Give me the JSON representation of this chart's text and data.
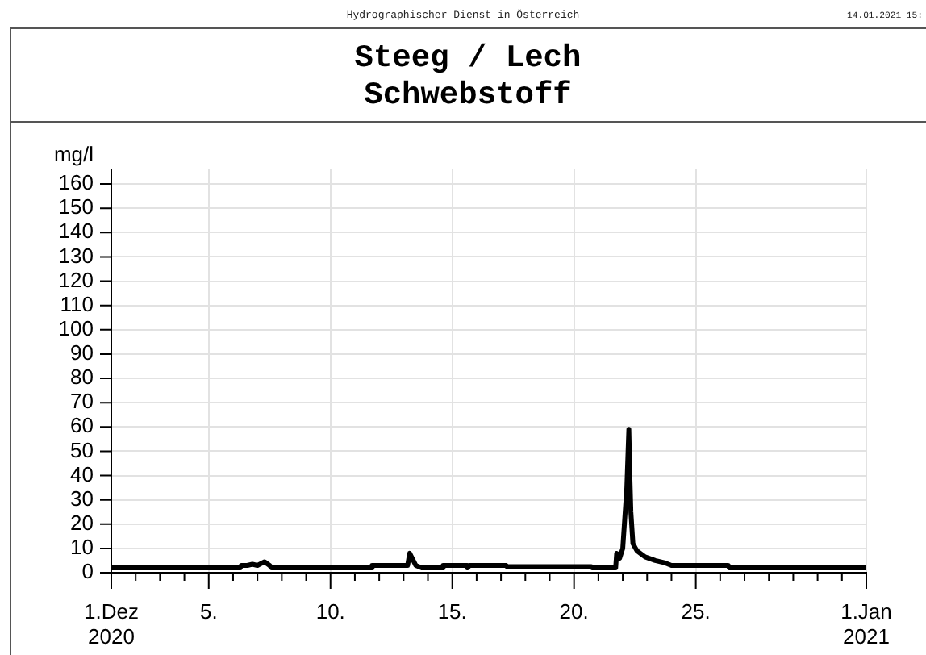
{
  "chart_data": {
    "type": "line",
    "title": "Steeg / Lech",
    "subtitle": "Schwebstoff",
    "ylabel": "mg/l",
    "annotations": [
      "Hydrographischer Dienst in Österreich",
      "14.01.2021 15:"
    ],
    "x": [
      "2020-12-01T00:00",
      "2020-12-06T07:00",
      "2020-12-06T08:00",
      "2020-12-06T14:00",
      "2020-12-06T19:00",
      "2020-12-07T00:00",
      "2020-12-07T07:00",
      "2020-12-07T12:00",
      "2020-12-07T14:00",
      "2020-12-11T16:00",
      "2020-12-11T17:00",
      "2020-12-13T04:00",
      "2020-12-13T06:00",
      "2020-12-13T12:00",
      "2020-12-13T18:00",
      "2020-12-14T14:00",
      "2020-12-14T15:00",
      "2020-12-15T14:00",
      "2020-12-15T15:00",
      "2020-12-15T17:00",
      "2020-12-17T05:00",
      "2020-12-17T06:00",
      "2020-12-20T17:00",
      "2020-12-20T18:00",
      "2020-12-21T17:00",
      "2020-12-21T18:00",
      "2020-12-21T21:00",
      "2020-12-22T00:00",
      "2020-12-22T04:00",
      "2020-12-22T06:00",
      "2020-12-22T07:00",
      "2020-12-22T08:00",
      "2020-12-22T10:00",
      "2020-12-22T14:00",
      "2020-12-22T22:00",
      "2020-12-23T08:00",
      "2020-12-23T18:00",
      "2020-12-24T00:00",
      "2020-12-26T08:00",
      "2020-12-26T09:00",
      "2021-01-01T00:00"
    ],
    "series": [
      {
        "color": "#000000",
        "values": [
          2,
          2,
          3,
          3,
          3.5,
          3,
          4.5,
          3,
          2,
          2,
          3,
          3,
          8,
          3,
          2,
          2,
          3,
          3,
          2,
          3,
          3,
          2.5,
          2.5,
          2,
          2,
          8,
          6,
          10,
          35,
          59,
          40,
          25,
          12,
          9,
          6.5,
          5,
          4,
          3,
          3,
          2,
          2
        ]
      }
    ],
    "xlim": [
      "2020-12-01",
      "2021-01-01"
    ],
    "xticks": [
      {
        "value": "2020-12-01",
        "label": "1.Dez\n2020"
      },
      {
        "value": "2020-12-02",
        "label": null
      },
      {
        "value": "2020-12-03",
        "label": null
      },
      {
        "value": "2020-12-04",
        "label": null
      },
      {
        "value": "2020-12-05",
        "label": "5."
      },
      {
        "value": "2020-12-06",
        "label": null
      },
      {
        "value": "2020-12-07",
        "label": null
      },
      {
        "value": "2020-12-08",
        "label": null
      },
      {
        "value": "2020-12-09",
        "label": null
      },
      {
        "value": "2020-12-10",
        "label": "10."
      },
      {
        "value": "2020-12-11",
        "label": null
      },
      {
        "value": "2020-12-12",
        "label": null
      },
      {
        "value": "2020-12-13",
        "label": null
      },
      {
        "value": "2020-12-14",
        "label": null
      },
      {
        "value": "2020-12-15",
        "label": "15."
      },
      {
        "value": "2020-12-16",
        "label": null
      },
      {
        "value": "2020-12-17",
        "label": null
      },
      {
        "value": "2020-12-18",
        "label": null
      },
      {
        "value": "2020-12-19",
        "label": null
      },
      {
        "value": "2020-12-20",
        "label": "20."
      },
      {
        "value": "2020-12-21",
        "label": null
      },
      {
        "value": "2020-12-22",
        "label": null
      },
      {
        "value": "2020-12-23",
        "label": null
      },
      {
        "value": "2020-12-24",
        "label": null
      },
      {
        "value": "2020-12-25",
        "label": "25."
      },
      {
        "value": "2020-12-26",
        "label": null
      },
      {
        "value": "2020-12-27",
        "label": null
      },
      {
        "value": "2020-12-28",
        "label": null
      },
      {
        "value": "2020-12-29",
        "label": null
      },
      {
        "value": "2020-12-30",
        "label": null
      },
      {
        "value": "2020-12-31",
        "label": null
      },
      {
        "value": "2021-01-01",
        "label": "1.Jan\n2021"
      }
    ],
    "ylim": [
      0,
      166
    ],
    "yticks": [
      0,
      10,
      20,
      30,
      40,
      50,
      60,
      70,
      80,
      90,
      100,
      110,
      120,
      130,
      140,
      150,
      160
    ],
    "grid": true,
    "marker": "none",
    "line_style": "solid"
  }
}
